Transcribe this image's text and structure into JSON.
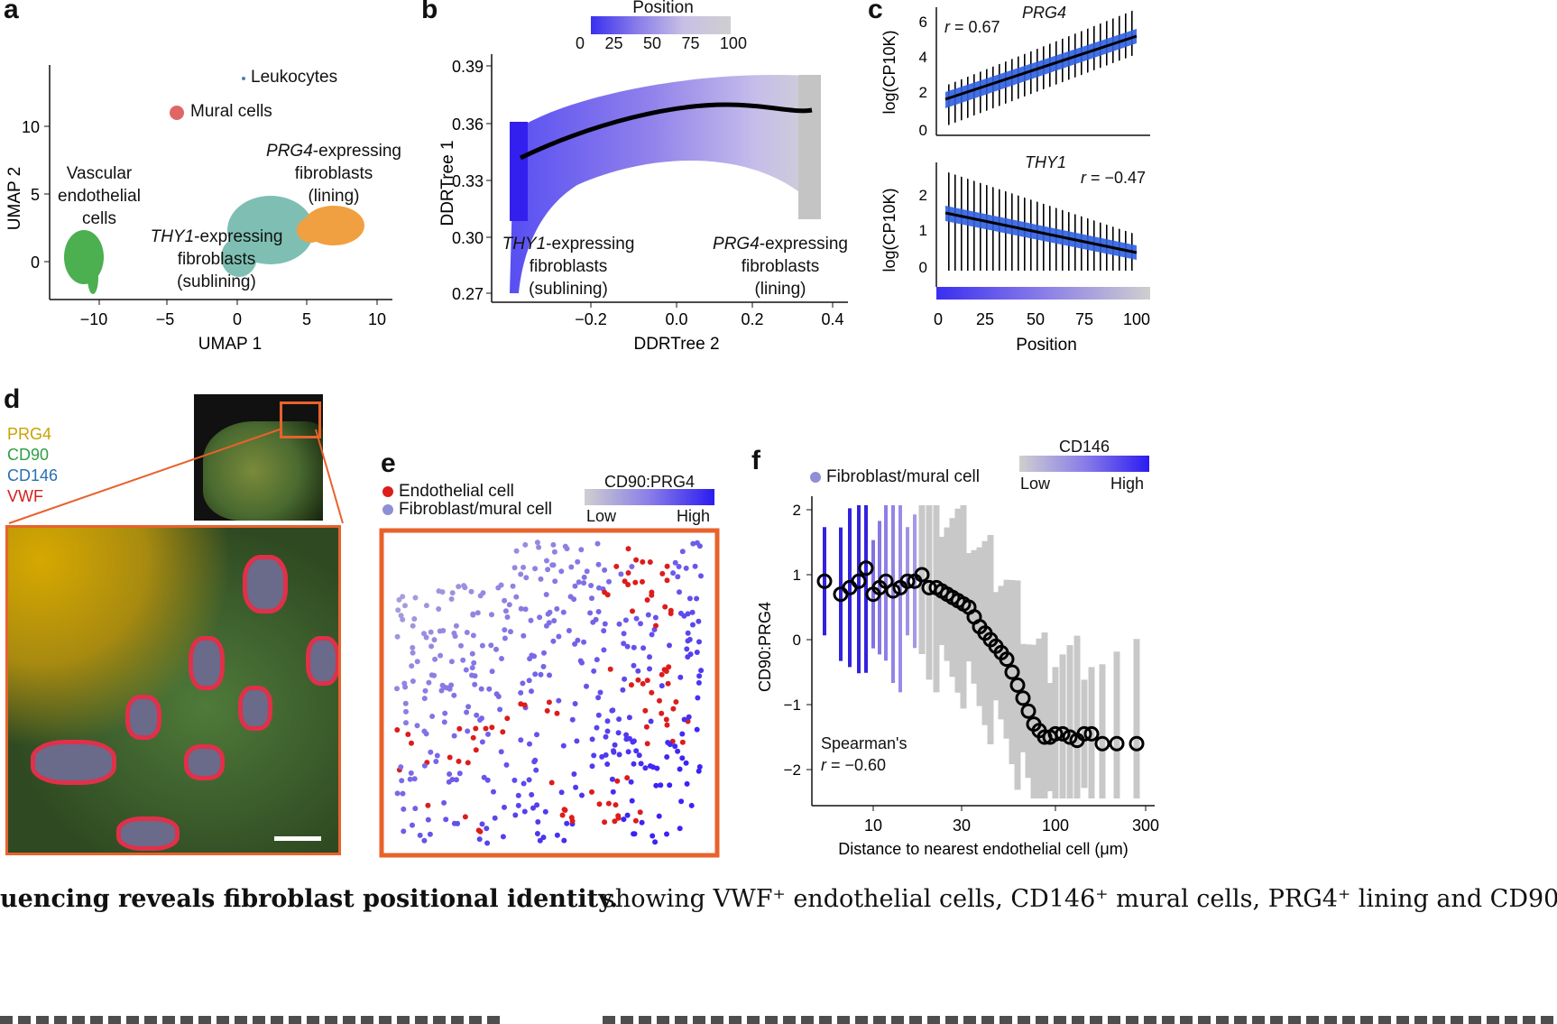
{
  "panels": {
    "a": {
      "label": "a",
      "xlabel": "UMAP 1",
      "ylabel": "UMAP 2",
      "xticks": [
        "−10",
        "−5",
        "0",
        "5",
        "10"
      ],
      "yticks": [
        "10",
        "5",
        "0"
      ],
      "clusters": {
        "leukocytes": "Leukocytes",
        "mural": "Mural cells",
        "vascular_1": "Vascular",
        "vascular_2": "endothelial",
        "vascular_3": "cells",
        "thy1_gene": "THY1",
        "thy1_1": "-expressing",
        "thy1_2": "fibroblasts",
        "thy1_3": "(sublining)",
        "prg4_gene": "PRG4",
        "prg4_1": "-expressing",
        "prg4_2": "fibroblasts",
        "prg4_3": "(lining)"
      },
      "colors": {
        "mural": "#e06666",
        "vascular": "#4caf50",
        "thy1": "#7fbfb3",
        "prg4": "#f0a040",
        "leuko": "#4a7fb5"
      }
    },
    "b": {
      "label": "b",
      "colorbar_title": "Position",
      "colorbar_ticks": [
        "0",
        "25",
        "50",
        "75",
        "100"
      ],
      "xlabel": "DDRTree 2",
      "ylabel": "DDRTree 1",
      "xticks": [
        "−0.2",
        "0.0",
        "0.2",
        "0.4"
      ],
      "yticks": [
        "0.39",
        "0.36",
        "0.33",
        "0.30",
        "0.27"
      ],
      "left_gene": "THY1",
      "left_1": "-expressing",
      "left_2": "fibroblasts",
      "left_3": "(sublining)",
      "right_gene": "PRG4",
      "right_1": "-expressing",
      "right_2": "fibroblasts",
      "right_3": "(lining)"
    },
    "c": {
      "label": "c",
      "top_gene": "PRG4",
      "top_r_sym": "r",
      "top_r_val": " = 0.67",
      "top_ylabel": "log(CP10K)",
      "top_yticks": [
        "6",
        "4",
        "2",
        "0"
      ],
      "bottom_gene": "THY1",
      "bottom_r_sym": "r",
      "bottom_r_val": " = −0.47",
      "bottom_ylabel": "log(CP10K)",
      "bottom_yticks": [
        "2",
        "1",
        "0"
      ],
      "xticks": [
        "0",
        "25",
        "50",
        "75",
        "100"
      ],
      "xlabel": "Position"
    },
    "d": {
      "label": "d",
      "markers": [
        {
          "name": "PRG4",
          "color": "#c9a200"
        },
        {
          "name": "CD90",
          "color": "#2e9e44"
        },
        {
          "name": "CD146",
          "color": "#2a6fb0"
        },
        {
          "name": "VWF",
          "color": "#d42020"
        }
      ]
    },
    "e": {
      "label": "e",
      "legend_endo": "Endothelial cell",
      "legend_fibro": "Fibroblast/mural cell",
      "colorbar_title": "CD90:PRG4",
      "colorbar_low": "Low",
      "colorbar_high": "High",
      "endo_color": "#dd1c1c",
      "fibro_color": "#8f8fd6"
    },
    "f": {
      "label": "f",
      "legend_fibro": "Fibroblast/mural cell",
      "colorbar_title": "CD146",
      "colorbar_low": "Low",
      "colorbar_high": "High",
      "ylabel": "CD90:PRG4",
      "xlabel": "Distance to nearest endothelial cell (μm)",
      "xticks": [
        "10",
        "30",
        "100",
        "300"
      ],
      "yticks": [
        "2",
        "1",
        "0",
        "−1",
        "−2"
      ],
      "spearman": "Spearman's",
      "r_sym": "r",
      "r_val": " = −0.60"
    }
  },
  "caption_left": "uencing reveals fibroblast positional identity.",
  "caption_right": "showing VWF⁺ endothelial cells, CD146⁺ mural cells, PRG4⁺ lining and CD90"
}
